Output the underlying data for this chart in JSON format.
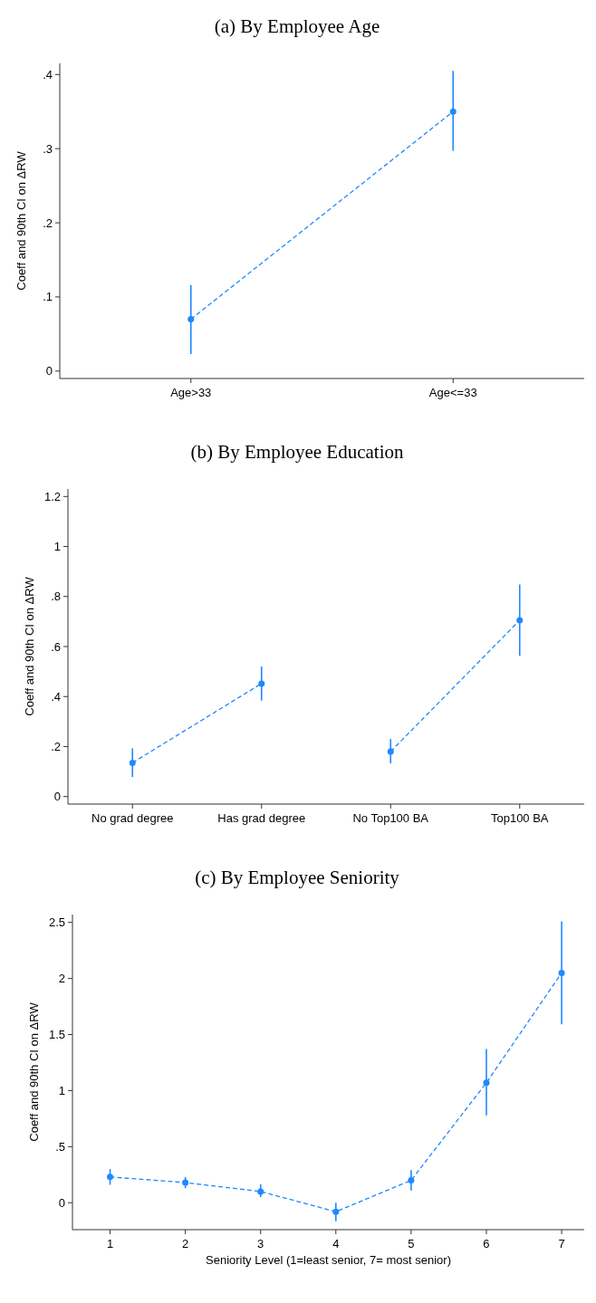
{
  "chart_data": [
    {
      "type": "line",
      "title": "(a) By Employee Age",
      "ylabel": "Coeff and 90th CI on ΔRW",
      "categories": [
        "Age>33",
        "Age<=33"
      ],
      "series": [
        {
          "color": "#1e88ff",
          "values": [
            0.07,
            0.35
          ],
          "errors": [
            [
              0.023,
              0.116
            ],
            [
              0.297,
              0.405
            ]
          ]
        }
      ],
      "ylim": [
        -0.01,
        0.415
      ],
      "yticks": [
        0,
        {
          "value": 0.1,
          "label": ".1"
        },
        {
          "value": 0.2,
          "label": ".2"
        },
        {
          "value": 0.3,
          "label": ".3"
        },
        {
          "value": 0.4,
          "label": ".4"
        }
      ],
      "grid": false,
      "marker": "circle",
      "line_style": "dashed"
    },
    {
      "type": "line",
      "title": "(b) By Employee Education",
      "ylabel": "Coeff and 90th CI on ΔRW",
      "categories": [
        "No grad degree",
        "Has grad degree",
        "No Top100 BA",
        "Top100 BA"
      ],
      "series": [
        {
          "color": "#1e88ff",
          "values": [
            0.135,
            0.452,
            null,
            null
          ],
          "errors": [
            [
              0.078,
              0.193
            ],
            [
              0.384,
              0.52
            ],
            null,
            null
          ]
        },
        {
          "color": "#1e88ff",
          "values": [
            null,
            null,
            0.18,
            0.705
          ],
          "errors": [
            null,
            null,
            [
              0.133,
              0.23
            ],
            [
              0.563,
              0.848
            ]
          ]
        }
      ],
      "ylim": [
        -0.03,
        1.23
      ],
      "yticks": [
        0,
        {
          "value": 0.2,
          "label": ".2"
        },
        {
          "value": 0.4,
          "label": ".4"
        },
        {
          "value": 0.6,
          "label": ".6"
        },
        {
          "value": 0.8,
          "label": ".8"
        },
        1,
        1.2
      ],
      "grid": false,
      "marker": "circle",
      "line_style": "dashed"
    },
    {
      "type": "line",
      "title": "(c) By Employee Seniority",
      "xlabel": "Seniority Level (1=least senior, 7= most senior)",
      "ylabel": "Coeff and 90th CI on ΔRW",
      "x": [
        1,
        2,
        3,
        4,
        5,
        6,
        7
      ],
      "series": [
        {
          "color": "#1e88ff",
          "values": [
            0.23,
            0.18,
            0.1,
            -0.08,
            0.2,
            1.07,
            2.05
          ],
          "errors": [
            [
              0.16,
              0.3
            ],
            [
              0.13,
              0.23
            ],
            [
              0.05,
              0.165
            ],
            [
              -0.165,
              0
            ],
            [
              0.11,
              0.29
            ],
            [
              0.78,
              1.37
            ],
            [
              1.59,
              2.51
            ]
          ]
        }
      ],
      "xlim": [
        0.5,
        7.3
      ],
      "xticks": [
        1,
        2,
        3,
        4,
        5,
        6,
        7
      ],
      "ylim": [
        -0.24,
        2.57
      ],
      "yticks": [
        0,
        {
          "value": 0.5,
          "label": ".5"
        },
        1,
        1.5,
        2,
        2.5
      ],
      "grid": false,
      "marker": "circle",
      "line_style": "dashed"
    }
  ]
}
